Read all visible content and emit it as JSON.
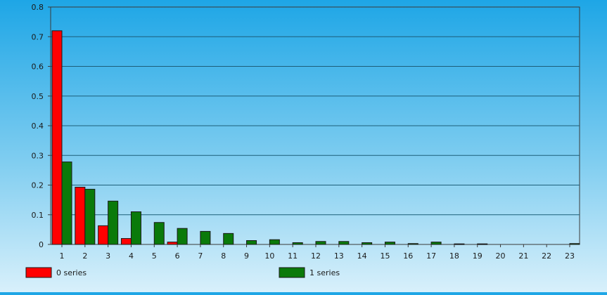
{
  "chart_data": {
    "type": "bar",
    "categories": [
      "1",
      "2",
      "3",
      "4",
      "5",
      "6",
      "7",
      "8",
      "9",
      "10",
      "11",
      "12",
      "13",
      "14",
      "15",
      "16",
      "17",
      "18",
      "19",
      "20",
      "21",
      "22",
      "23"
    ],
    "series": [
      {
        "name": "0 series",
        "color": "#ff0000",
        "values": [
          0.72,
          0.193,
          0.063,
          0.02,
          0,
          0.008,
          0,
          0,
          0,
          0,
          0,
          0,
          0,
          0,
          0,
          0,
          0,
          0,
          0,
          0,
          0,
          0,
          0
        ]
      },
      {
        "name": "1 series",
        "color": "#0a7a0a",
        "values": [
          0.278,
          0.186,
          0.146,
          0.11,
          0.074,
          0.054,
          0.044,
          0.037,
          0.013,
          0.016,
          0.006,
          0.01,
          0.01,
          0.006,
          0.008,
          0.003,
          0.008,
          0.002,
          0.002,
          0,
          0,
          0,
          0.003
        ]
      }
    ],
    "y_ticks": [
      "0",
      "0.1",
      "0.2",
      "0.3",
      "0.4",
      "0.5",
      "0.6",
      "0.7",
      "0.8"
    ],
    "ylim": [
      0,
      0.8
    ],
    "grid": true,
    "legend_position": "bottom",
    "title": "",
    "xlabel": "",
    "ylabel": ""
  }
}
